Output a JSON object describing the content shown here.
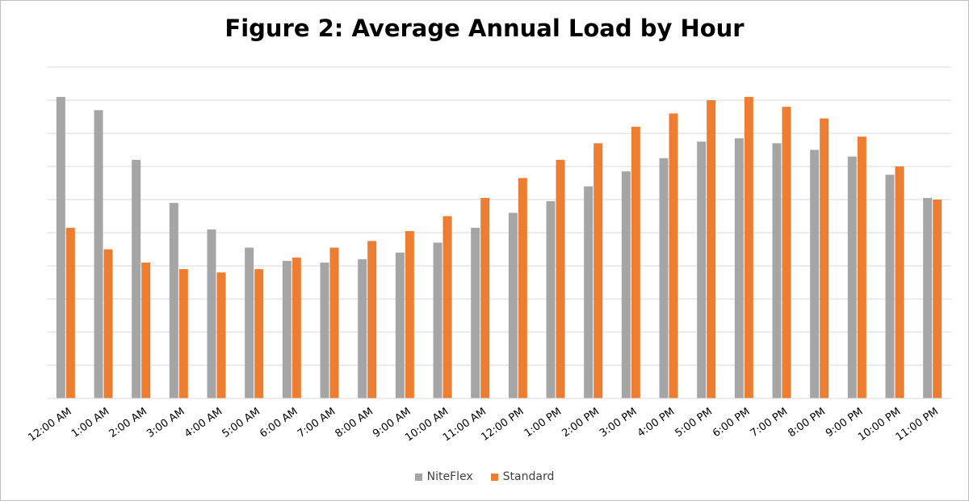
{
  "chart_data": {
    "type": "bar",
    "title": "Figure 2: Average Annual Load by Hour",
    "xlabel": "",
    "ylabel": "",
    "ylim": [
      0,
      10
    ],
    "grid": true,
    "legend_position": "bottom",
    "categories": [
      "12:00 AM",
      "1:00 AM",
      "2:00 AM",
      "3:00 AM",
      "4:00 AM",
      "5:00 AM",
      "6:00 AM",
      "7:00 AM",
      "8:00 AM",
      "9:00 AM",
      "10:00 AM",
      "11:00 AM",
      "12:00 PM",
      "1:00 PM",
      "2:00 PM",
      "3:00 PM",
      "4:00 PM",
      "5:00 PM",
      "6:00 PM",
      "7:00 PM",
      "8:00 PM",
      "9:00 PM",
      "10:00 PM",
      "11:00 PM"
    ],
    "series": [
      {
        "name": "NiteFlex",
        "color": "#a5a5a5",
        "values": [
          9.1,
          8.7,
          7.2,
          5.9,
          5.1,
          4.55,
          4.15,
          4.1,
          4.2,
          4.4,
          4.7,
          5.15,
          5.6,
          5.95,
          6.4,
          6.85,
          7.25,
          7.75,
          7.85,
          7.7,
          7.5,
          7.3,
          6.75,
          6.05
        ]
      },
      {
        "name": "Standard",
        "color": "#ed7d31",
        "values": [
          5.15,
          4.5,
          4.1,
          3.9,
          3.8,
          3.9,
          4.25,
          4.55,
          4.75,
          5.05,
          5.5,
          6.05,
          6.65,
          7.2,
          7.7,
          8.2,
          8.6,
          9.0,
          9.1,
          8.8,
          8.45,
          7.9,
          7.0,
          6.0
        ]
      }
    ]
  }
}
